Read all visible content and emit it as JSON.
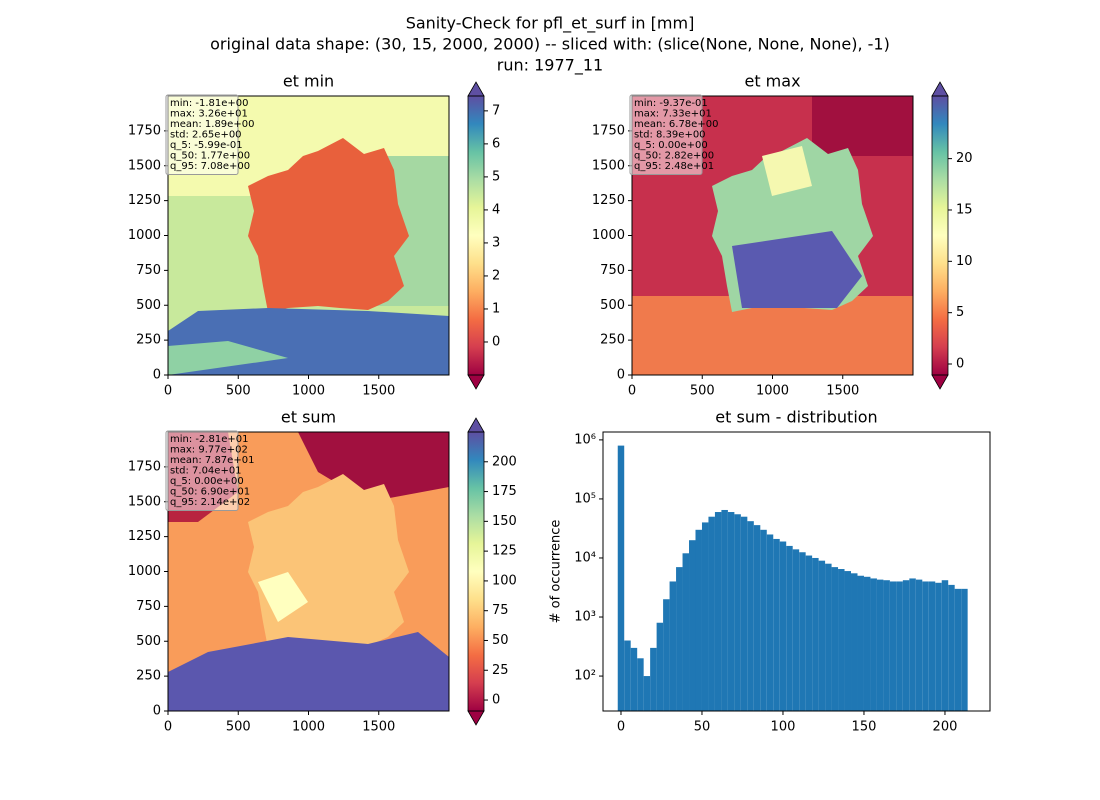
{
  "suptitle": [
    "Sanity-Check for pfl_et_surf in [mm]",
    "original data shape: (30, 15, 2000, 2000) -- sliced with: (slice(None, None, None), -1)",
    "run: 1977_11"
  ],
  "chart_data": [
    {
      "type": "heatmap",
      "title": "et min",
      "colormap": "Spectral",
      "xlim": [
        0,
        2000
      ],
      "ylim": [
        0,
        2000
      ],
      "xticks": [
        0,
        500,
        1000,
        1500
      ],
      "yticks": [
        0,
        250,
        500,
        750,
        1000,
        1250,
        1500,
        1750
      ],
      "clim": [
        -1,
        7.45
      ],
      "cbar_ticks": [
        0,
        1,
        2,
        3,
        4,
        5,
        6,
        7
      ],
      "stats": [
        "min: -1.81e+00",
        "max: 3.26e+01",
        "mean: 1.89e+00",
        "std: 2.65e+00",
        "q_5: -5.99e-01",
        "q_50: 1.77e+00",
        "q_95: 7.08e+00"
      ]
    },
    {
      "type": "heatmap",
      "title": "et max",
      "colormap": "Spectral",
      "xlim": [
        0,
        2000
      ],
      "ylim": [
        0,
        2000
      ],
      "xticks": [
        0,
        500,
        1000,
        1500
      ],
      "yticks": [
        0,
        250,
        500,
        750,
        1000,
        1250,
        1500,
        1750
      ],
      "clim": [
        -1.07,
        26.1
      ],
      "cbar_ticks": [
        0,
        5,
        10,
        15,
        20
      ],
      "stats": [
        "min: -9.37e-01",
        "max: 7.33e+01",
        "mean: 6.78e+00",
        "std: 8.39e+00",
        "q_5: 0.00e+00",
        "q_50: 2.82e+00",
        "q_95: 2.48e+01"
      ]
    },
    {
      "type": "heatmap",
      "title": "et sum",
      "colormap": "Spectral",
      "xlim": [
        0,
        2000
      ],
      "ylim": [
        0,
        2000
      ],
      "xticks": [
        0,
        500,
        1000,
        1500
      ],
      "yticks": [
        0,
        250,
        500,
        750,
        1000,
        1250,
        1500,
        1750
      ],
      "clim": [
        -9.2,
        225
      ],
      "cbar_ticks": [
        0,
        25,
        50,
        75,
        100,
        125,
        150,
        175,
        200
      ],
      "stats": [
        "min: -2.81e+01",
        "max: 9.77e+02",
        "mean: 7.87e+01",
        "std: 7.04e+01",
        "q_5: 0.00e+00",
        "q_50: 6.90e+01",
        "q_95: 2.14e+02"
      ]
    },
    {
      "type": "histogram",
      "title": "et sum - distribution",
      "ylabel": "# of occurrence",
      "color": "#1f77b4",
      "log_y": true,
      "xlim": [
        -11.1,
        227.8
      ],
      "xticks": [
        0,
        50,
        100,
        150,
        200
      ],
      "ylim": [
        25.6,
        1360000
      ],
      "yticks": [
        {
          "value": 100,
          "label": "10²"
        },
        {
          "value": 1000,
          "label": "10³"
        },
        {
          "value": 10000,
          "label": "10⁴"
        },
        {
          "value": 100000,
          "label": "10⁵"
        },
        {
          "value": 1000000,
          "label": "10⁶"
        }
      ],
      "bins": [
        -2,
        2,
        6,
        10,
        14,
        18,
        22,
        26,
        30,
        34,
        38,
        42,
        46,
        50,
        54,
        58,
        62,
        66,
        70,
        74,
        78,
        82,
        86,
        90,
        94,
        98,
        102,
        106,
        110,
        114,
        118,
        122,
        126,
        130,
        134,
        138,
        142,
        146,
        150,
        154,
        158,
        162,
        166,
        170,
        174,
        178,
        182,
        186,
        190,
        194,
        198,
        202,
        206,
        210,
        214
      ],
      "counts": [
        800000,
        400,
        300,
        200,
        100,
        300,
        800,
        2000,
        4000,
        7000,
        12000,
        20000,
        30000,
        40000,
        50000,
        60000,
        65000,
        60000,
        55000,
        50000,
        42000,
        36000,
        30000,
        25000,
        21000,
        19000,
        16000,
        14000,
        12500,
        11000,
        10000,
        9000,
        8000,
        7000,
        6500,
        6000,
        5500,
        5000,
        4800,
        4500,
        4300,
        4200,
        4000,
        4000,
        4200,
        4500,
        4300,
        4000,
        4000,
        3800,
        4200,
        3500,
        3000,
        3000
      ]
    }
  ]
}
